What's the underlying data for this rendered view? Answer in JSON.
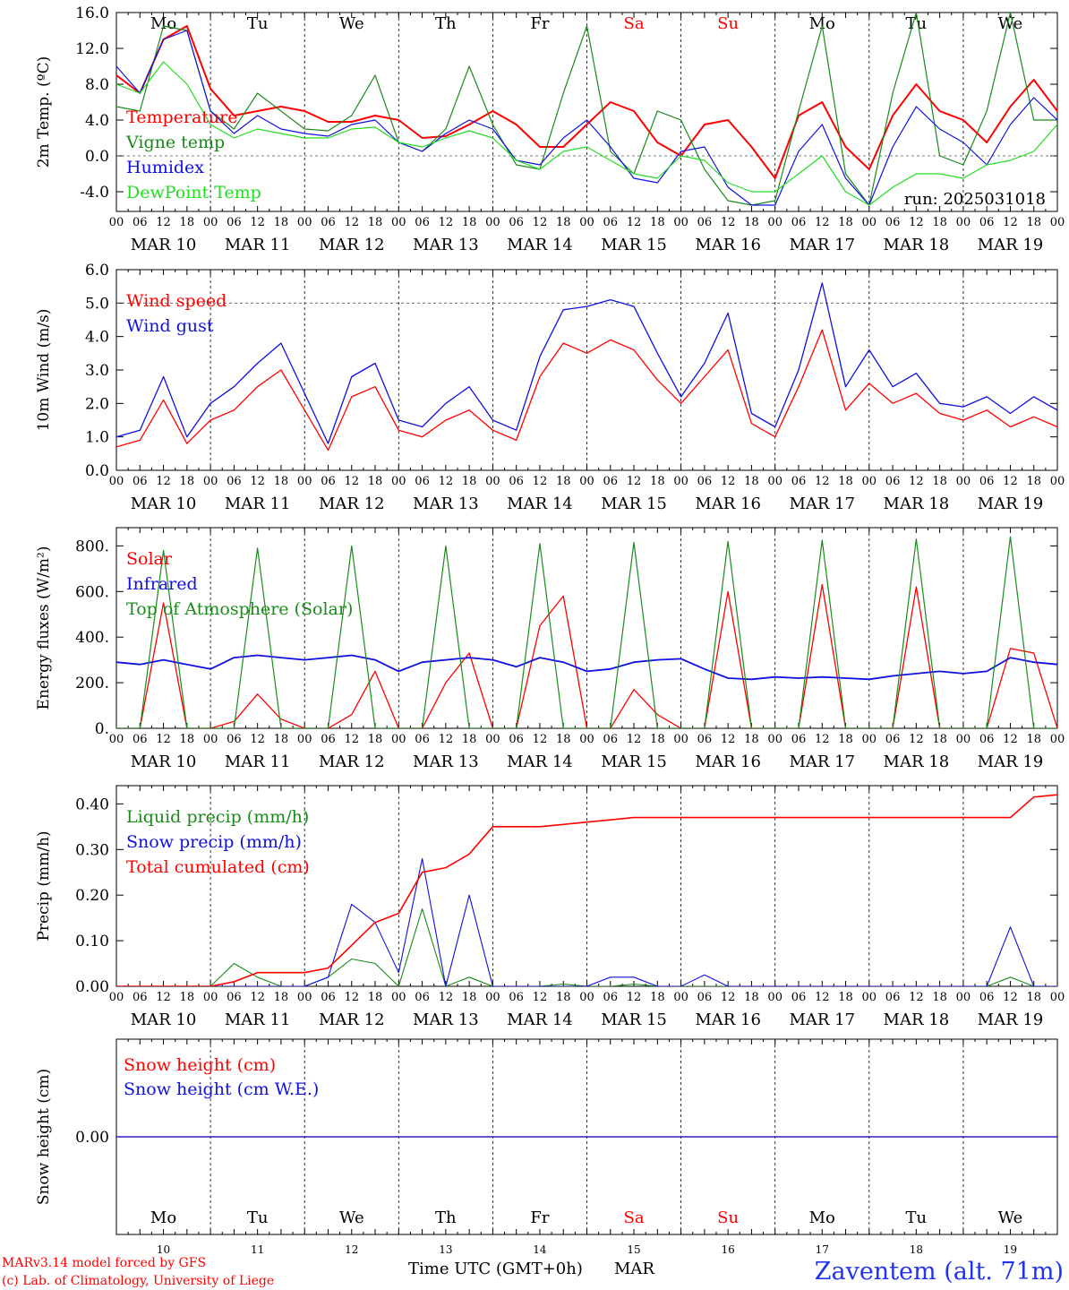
{
  "station": "Zaventem (alt. 71m)",
  "run_label": "run: 2025031018",
  "footer": {
    "credit1": "MARv3.14 model forced by GFS",
    "credit2": "(c) Lab. of Climatology, University of Liege",
    "time_axis": "Time UTC (GMT+0h)",
    "month": "MAR"
  },
  "colors": {
    "red": "#ff0000",
    "green": "#1a8a1a",
    "blue": "#1010e0",
    "lightgreen": "#22dd22",
    "station_blue": "#2233ee"
  },
  "days": [
    {
      "dow": "Mo",
      "date": "MAR 10",
      "num": "10",
      "weekend": false
    },
    {
      "dow": "Tu",
      "date": "MAR 11",
      "num": "11",
      "weekend": false
    },
    {
      "dow": "We",
      "date": "MAR 12",
      "num": "12",
      "weekend": false
    },
    {
      "dow": "Th",
      "date": "MAR 13",
      "num": "13",
      "weekend": false
    },
    {
      "dow": "Fr",
      "date": "MAR 14",
      "num": "14",
      "weekend": false
    },
    {
      "dow": "Sa",
      "date": "MAR 15",
      "num": "15",
      "weekend": true
    },
    {
      "dow": "Su",
      "date": "MAR 16",
      "num": "16",
      "weekend": true
    },
    {
      "dow": "Mo",
      "date": "MAR 17",
      "num": "17",
      "weekend": false
    },
    {
      "dow": "Tu",
      "date": "MAR 18",
      "num": "18",
      "weekend": false
    },
    {
      "dow": "We",
      "date": "MAR 19",
      "num": "19",
      "weekend": false
    }
  ],
  "hour_labels": [
    "00",
    "06",
    "12",
    "18"
  ],
  "chart_data": [
    {
      "type": "line",
      "id": "temp",
      "ylabel": "2m Temp. (ºC)",
      "ylim": [
        -6.2,
        16.0
      ],
      "yticks": [
        {
          "v": 16.0,
          "t": "16.0"
        },
        {
          "v": 12.0,
          "t": "12.0"
        },
        {
          "v": 8.0,
          "t": "8.0"
        },
        {
          "v": 4.0,
          "t": "4.0"
        },
        {
          "v": 0.0,
          "t": "0.0"
        },
        {
          "v": -4.0,
          "t": "-4.0"
        }
      ],
      "hline": 0.0,
      "x_hours": [
        0,
        6,
        12,
        18,
        24,
        30,
        36,
        42,
        48,
        54,
        60,
        66,
        72,
        78,
        84,
        90,
        96,
        102,
        108,
        114,
        120,
        126,
        132,
        138,
        144,
        150,
        156,
        162,
        168,
        174,
        180,
        186,
        192,
        198,
        204,
        210,
        216,
        222,
        228,
        234,
        240
      ],
      "series": [
        {
          "name": "Temperature",
          "color": "#ff0000",
          "width": 2,
          "values": [
            9.0,
            7.0,
            13.0,
            14.5,
            7.5,
            4.5,
            5.0,
            5.5,
            5.0,
            3.8,
            3.8,
            4.5,
            4.0,
            2.0,
            2.2,
            3.5,
            5.0,
            3.5,
            1.0,
            1.0,
            3.5,
            6.0,
            5.0,
            1.5,
            0.0,
            3.5,
            4.0,
            1.0,
            -2.5,
            4.5,
            6.0,
            1.0,
            -1.5,
            4.5,
            8.0,
            5.0,
            4.0,
            1.5,
            5.5,
            8.5,
            5.0
          ]
        },
        {
          "name": "Vigne temp",
          "color": "#1a8a1a",
          "width": 1.2,
          "values": [
            5.5,
            5.0,
            14.5,
            14.0,
            5.0,
            3.0,
            7.0,
            5.0,
            3.0,
            2.8,
            4.5,
            9.0,
            1.5,
            0.5,
            3.0,
            10.0,
            3.5,
            -1.0,
            -1.5,
            7.0,
            14.5,
            0.5,
            -2.0,
            5.0,
            4.0,
            -1.5,
            -5.0,
            -5.5,
            -5.0,
            5.0,
            14.5,
            -2.0,
            -5.5,
            7.0,
            16.0,
            0.0,
            -1.0,
            5.0,
            16.0,
            4.0,
            4.0
          ]
        },
        {
          "name": "Humidex",
          "color": "#1010e0",
          "width": 1.2,
          "values": [
            10.0,
            7.0,
            13.0,
            14.0,
            5.0,
            2.5,
            4.5,
            3.0,
            2.5,
            2.2,
            3.5,
            4.0,
            1.5,
            0.5,
            2.5,
            4.0,
            3.0,
            -0.5,
            -1.0,
            2.0,
            4.0,
            1.0,
            -2.5,
            -3.0,
            0.5,
            1.0,
            -3.5,
            -5.5,
            -5.5,
            0.5,
            3.5,
            -2.5,
            -5.5,
            1.0,
            5.5,
            3.0,
            1.5,
            -1.0,
            3.5,
            6.5,
            4.0
          ]
        },
        {
          "name": "DewPoint Temp",
          "color": "#22dd22",
          "width": 1.2,
          "values": [
            8.0,
            7.0,
            10.5,
            8.0,
            3.5,
            2.0,
            3.0,
            2.5,
            2.0,
            2.0,
            3.0,
            3.2,
            1.5,
            1.0,
            2.0,
            2.8,
            2.0,
            -0.5,
            -1.5,
            0.5,
            1.0,
            -0.5,
            -2.0,
            -2.5,
            0.0,
            -0.5,
            -3.0,
            -4.0,
            -4.0,
            -2.0,
            0.0,
            -4.0,
            -5.5,
            -3.5,
            -2.0,
            -2.0,
            -2.5,
            -1.0,
            -0.5,
            0.5,
            3.5
          ]
        }
      ]
    },
    {
      "type": "line",
      "id": "wind",
      "ylabel": "10m Wind (m/s)",
      "ylim": [
        0.0,
        6.0
      ],
      "yticks": [
        {
          "v": 6.0,
          "t": "6.0"
        },
        {
          "v": 5.0,
          "t": "5.0"
        },
        {
          "v": 4.0,
          "t": "4.0"
        },
        {
          "v": 3.0,
          "t": "3.0"
        },
        {
          "v": 2.0,
          "t": "2.0"
        },
        {
          "v": 1.0,
          "t": "1.0"
        },
        {
          "v": 0.0,
          "t": "0.0"
        }
      ],
      "hline": 5.0,
      "x_hours": [
        0,
        6,
        12,
        18,
        24,
        30,
        36,
        42,
        48,
        54,
        60,
        66,
        72,
        78,
        84,
        90,
        96,
        102,
        108,
        114,
        120,
        126,
        132,
        138,
        144,
        150,
        156,
        162,
        168,
        174,
        180,
        186,
        192,
        198,
        204,
        210,
        216,
        222,
        228,
        234,
        240
      ],
      "series": [
        {
          "name": "Wind speed",
          "color": "#ff0000",
          "width": 1.3,
          "values": [
            0.7,
            0.9,
            2.1,
            0.8,
            1.5,
            1.8,
            2.5,
            3.0,
            1.8,
            0.6,
            2.2,
            2.5,
            1.2,
            1.0,
            1.5,
            1.8,
            1.2,
            0.9,
            2.8,
            3.8,
            3.5,
            3.9,
            3.6,
            2.7,
            2.0,
            2.8,
            3.6,
            1.4,
            1.0,
            2.5,
            4.2,
            1.8,
            2.6,
            2.0,
            2.3,
            1.7,
            1.5,
            1.8,
            1.3,
            1.6,
            1.3
          ]
        },
        {
          "name": "Wind gust",
          "color": "#1010e0",
          "width": 1.3,
          "values": [
            1.0,
            1.2,
            2.8,
            1.0,
            2.0,
            2.5,
            3.2,
            3.8,
            2.3,
            0.8,
            2.8,
            3.2,
            1.5,
            1.3,
            2.0,
            2.5,
            1.5,
            1.2,
            3.4,
            4.8,
            4.9,
            5.1,
            4.9,
            3.5,
            2.2,
            3.2,
            4.7,
            1.7,
            1.3,
            3.0,
            5.6,
            2.5,
            3.6,
            2.5,
            2.9,
            2.0,
            1.9,
            2.2,
            1.7,
            2.2,
            1.8
          ]
        }
      ]
    },
    {
      "type": "line",
      "id": "energy",
      "ylabel": "Energy fluxes (W/m²)",
      "ylim": [
        0,
        880
      ],
      "yticks": [
        {
          "v": 800,
          "t": "800."
        },
        {
          "v": 600,
          "t": "600."
        },
        {
          "v": 400,
          "t": "400."
        },
        {
          "v": 200,
          "t": "200."
        },
        {
          "v": 0,
          "t": "0."
        }
      ],
      "x_hours": [
        0,
        6,
        12,
        18,
        24,
        30,
        36,
        42,
        48,
        54,
        60,
        66,
        72,
        78,
        84,
        90,
        96,
        102,
        108,
        114,
        120,
        126,
        132,
        138,
        144,
        150,
        156,
        162,
        168,
        174,
        180,
        186,
        192,
        198,
        204,
        210,
        216,
        222,
        228,
        234,
        240
      ],
      "series": [
        {
          "name": "Solar",
          "color": "#ff0000",
          "width": 1.3,
          "values": [
            0,
            0,
            550,
            0,
            0,
            30,
            150,
            40,
            0,
            0,
            60,
            250,
            0,
            0,
            200,
            330,
            0,
            0,
            450,
            580,
            0,
            0,
            170,
            60,
            0,
            0,
            600,
            0,
            0,
            0,
            630,
            0,
            0,
            0,
            620,
            0,
            0,
            0,
            350,
            330,
            0
          ]
        },
        {
          "name": "Infrared",
          "color": "#1010e0",
          "width": 1.8,
          "values": [
            290,
            280,
            300,
            280,
            260,
            310,
            320,
            310,
            300,
            310,
            320,
            300,
            250,
            290,
            300,
            310,
            300,
            270,
            310,
            290,
            250,
            260,
            290,
            300,
            305,
            260,
            220,
            215,
            225,
            220,
            225,
            220,
            215,
            230,
            240,
            250,
            240,
            250,
            310,
            290,
            280
          ]
        },
        {
          "name": "Top of Atmosphere (Solar)",
          "color": "#1a8a1a",
          "width": 1.2,
          "values": [
            0,
            0,
            780,
            0,
            0,
            0,
            790,
            0,
            0,
            0,
            800,
            0,
            0,
            0,
            800,
            0,
            0,
            0,
            810,
            0,
            0,
            0,
            815,
            0,
            0,
            0,
            820,
            0,
            0,
            0,
            825,
            0,
            0,
            0,
            830,
            0,
            0,
            0,
            840,
            0,
            0
          ]
        }
      ]
    },
    {
      "type": "line",
      "id": "precip",
      "ylabel": "Precip (mm/h)",
      "ylim": [
        0.0,
        0.44
      ],
      "yticks": [
        {
          "v": 0.4,
          "t": "0.40"
        },
        {
          "v": 0.3,
          "t": "0.30"
        },
        {
          "v": 0.2,
          "t": "0.20"
        },
        {
          "v": 0.1,
          "t": "0.10"
        },
        {
          "v": 0.0,
          "t": "0.00"
        }
      ],
      "x_hours": [
        0,
        6,
        12,
        18,
        24,
        30,
        36,
        42,
        48,
        54,
        60,
        66,
        72,
        78,
        84,
        90,
        96,
        102,
        108,
        114,
        120,
        126,
        132,
        138,
        144,
        150,
        156,
        162,
        168,
        174,
        180,
        186,
        192,
        198,
        204,
        210,
        216,
        222,
        228,
        234,
        240
      ],
      "series": [
        {
          "name": "Liquid precip (mm/h)",
          "color": "#1a8a1a",
          "width": 1.1,
          "values": [
            0,
            0,
            0,
            0,
            0,
            0.05,
            0.02,
            0,
            0,
            0.02,
            0.06,
            0.05,
            0,
            0.17,
            0,
            0.02,
            0,
            0,
            0,
            0.005,
            0,
            0,
            0.005,
            0,
            0,
            0,
            0,
            0,
            0,
            0,
            0,
            0,
            0,
            0,
            0,
            0,
            0,
            0,
            0.02,
            0,
            0
          ]
        },
        {
          "name": "Snow precip (mm/h)",
          "color": "#1010e0",
          "width": 1.1,
          "values": [
            0,
            0,
            0,
            0,
            0,
            0,
            0,
            0,
            0,
            0.02,
            0.18,
            0.14,
            0.03,
            0.28,
            0,
            0.2,
            0,
            0,
            0,
            0,
            0,
            0.02,
            0.02,
            0,
            0,
            0.025,
            0,
            0,
            0,
            0,
            0,
            0,
            0,
            0,
            0,
            0,
            0,
            0,
            0.13,
            0,
            0
          ]
        },
        {
          "name": "Total cumulated (cm)",
          "color": "#ff0000",
          "width": 1.6,
          "values": [
            0,
            0,
            0,
            0,
            0,
            0.01,
            0.03,
            0.03,
            0.03,
            0.04,
            0.09,
            0.14,
            0.16,
            0.25,
            0.26,
            0.29,
            0.35,
            0.35,
            0.35,
            0.355,
            0.36,
            0.365,
            0.37,
            0.37,
            0.37,
            0.37,
            0.37,
            0.37,
            0.37,
            0.37,
            0.37,
            0.37,
            0.37,
            0.37,
            0.37,
            0.37,
            0.37,
            0.37,
            0.37,
            0.415,
            0.42
          ]
        }
      ]
    },
    {
      "type": "line",
      "id": "snow",
      "ylabel": "Snow height (cm)",
      "ylim": [
        -1.0,
        1.0
      ],
      "yticks": [
        {
          "v": 0.0,
          "t": "0.00"
        }
      ],
      "x_hours": [
        0,
        240
      ],
      "series": [
        {
          "name": "Snow height (cm)",
          "color": "#ff0000",
          "width": 1.3,
          "values": [
            0,
            0
          ]
        },
        {
          "name": "Snow height (cm W.E.)",
          "color": "#1010e0",
          "width": 1.3,
          "values": [
            0,
            0
          ]
        }
      ]
    }
  ]
}
